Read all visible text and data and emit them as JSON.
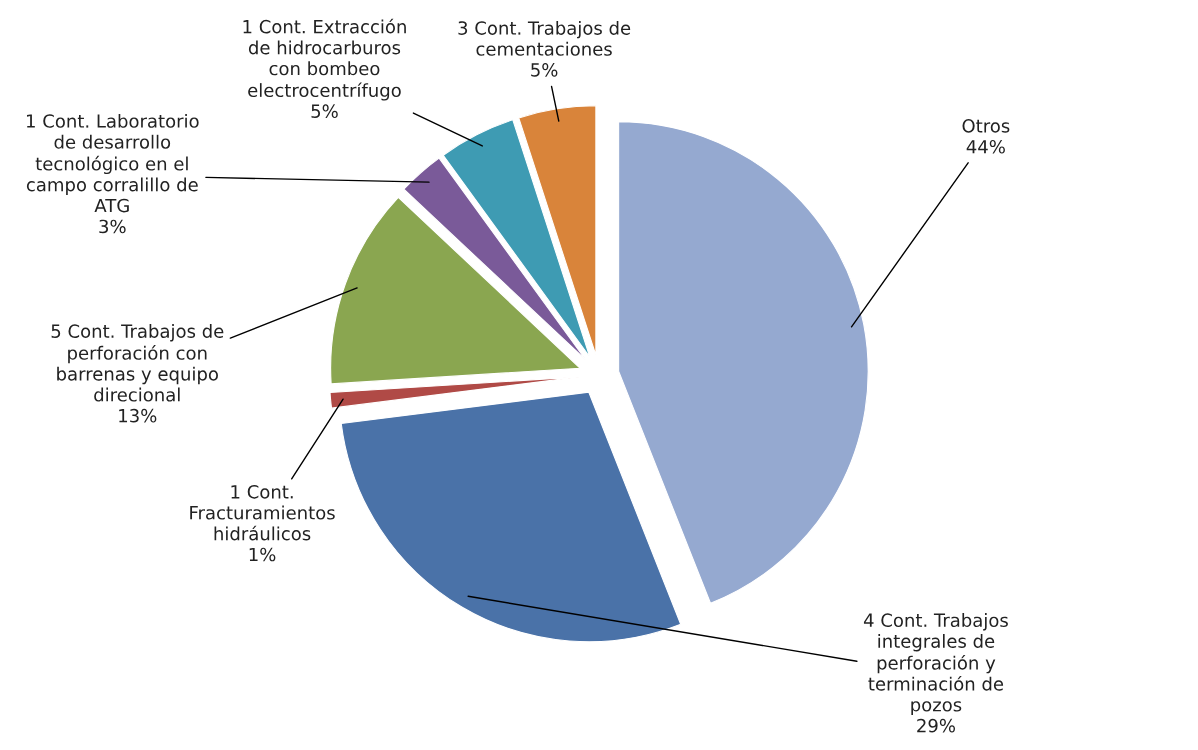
{
  "chart_data": {
    "type": "pie",
    "categories": [
      "Otros",
      "4 Cont. Trabajos\nintegrales de\nperforación y\nterminación de\npozos",
      "1 Cont.\nFracturamientos\nhidráulicos",
      "5 Cont. Trabajos de\nperforación con\nbarrenas y equipo\ndirecional",
      "1 Cont. Laboratorio\nde desarrollo\ntecnológico en el\ncampo corralillo de\nATG",
      "1 Cont. Extracción\nde hidrocarburos\ncon bombeo\nelectrocentrífugo",
      "3 Cont. Trabajos de\ncementaciones"
    ],
    "values": [
      44,
      29,
      1,
      13,
      3,
      5,
      5
    ],
    "value_labels": [
      "44%",
      "29%",
      "1%",
      "13%",
      "3%",
      "5%",
      "5%"
    ],
    "colors": [
      "#95a9d0",
      "#4a72a8",
      "#b04a46",
      "#8aa650",
      "#7a5a99",
      "#3e9bb3",
      "#d9843a"
    ]
  }
}
